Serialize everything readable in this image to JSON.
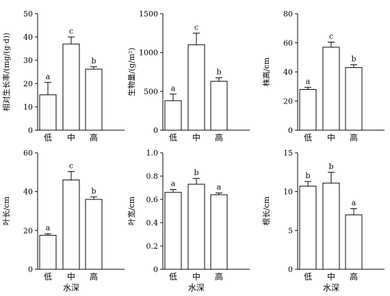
{
  "chart_data": [
    {
      "type": "bar",
      "categories": [
        "低",
        "中",
        "高"
      ],
      "values": [
        15.2,
        37.0,
        26.2
      ],
      "errors": [
        5.3,
        3.0,
        1.0
      ],
      "letters": [
        "a",
        "c",
        "b"
      ],
      "ylabel": "相对生长率/(mg/(g·d))",
      "xlabel": "",
      "ylim": [
        0,
        50
      ],
      "yticks": [
        0,
        10,
        20,
        30,
        40,
        50
      ]
    },
    {
      "type": "bar",
      "categories": [
        "低",
        "中",
        "高"
      ],
      "values": [
        380,
        1100,
        630
      ],
      "errors": [
        85,
        150,
        45
      ],
      "letters": [
        "a",
        "c",
        "b"
      ],
      "ylabel": "生物量/(g/m²)",
      "xlabel": "",
      "ylim": [
        0,
        1500
      ],
      "yticks": [
        0,
        500,
        1000,
        1500
      ]
    },
    {
      "type": "bar",
      "categories": [
        "低",
        "中",
        "高"
      ],
      "values": [
        28.0,
        57.0,
        43.0
      ],
      "errors": [
        1.5,
        3.5,
        2.0
      ],
      "letters": [
        "a",
        "c",
        "b"
      ],
      "ylabel": "株高/cm",
      "xlabel": "",
      "ylim": [
        0,
        80
      ],
      "yticks": [
        0,
        20,
        40,
        60,
        80
      ]
    },
    {
      "type": "bar",
      "categories": [
        "低",
        "中",
        "高"
      ],
      "values": [
        17.5,
        46.0,
        36.0
      ],
      "errors": [
        0.8,
        4.3,
        1.3
      ],
      "letters": [
        "a",
        "c",
        "b"
      ],
      "ylabel": "叶长/cm",
      "xlabel": "水深",
      "ylim": [
        0,
        60
      ],
      "yticks": [
        0,
        20,
        40,
        60
      ]
    },
    {
      "type": "bar",
      "categories": [
        "低",
        "中",
        "高"
      ],
      "values": [
        0.66,
        0.73,
        0.64
      ],
      "errors": [
        0.025,
        0.05,
        0.015
      ],
      "letters": [
        "a",
        "b",
        "a"
      ],
      "ylabel": "叶宽/cm",
      "xlabel": "水深",
      "ylim": [
        0,
        1.0
      ],
      "yticks": [
        0,
        0.2,
        0.4,
        0.6,
        0.8,
        1.0
      ],
      "ytick_labels": [
        "0",
        "0.2",
        "0.4",
        "0.6",
        "0.8",
        "1.0"
      ]
    },
    {
      "type": "bar",
      "categories": [
        "低",
        "中",
        "高"
      ],
      "values": [
        10.7,
        11.1,
        7.0
      ],
      "errors": [
        0.6,
        1.4,
        0.8
      ],
      "letters": [
        "b",
        "b",
        "a"
      ],
      "ylabel": "根长/cm",
      "xlabel": "水深",
      "ylim": [
        0,
        15
      ],
      "yticks": [
        0,
        5,
        10,
        15
      ]
    }
  ]
}
